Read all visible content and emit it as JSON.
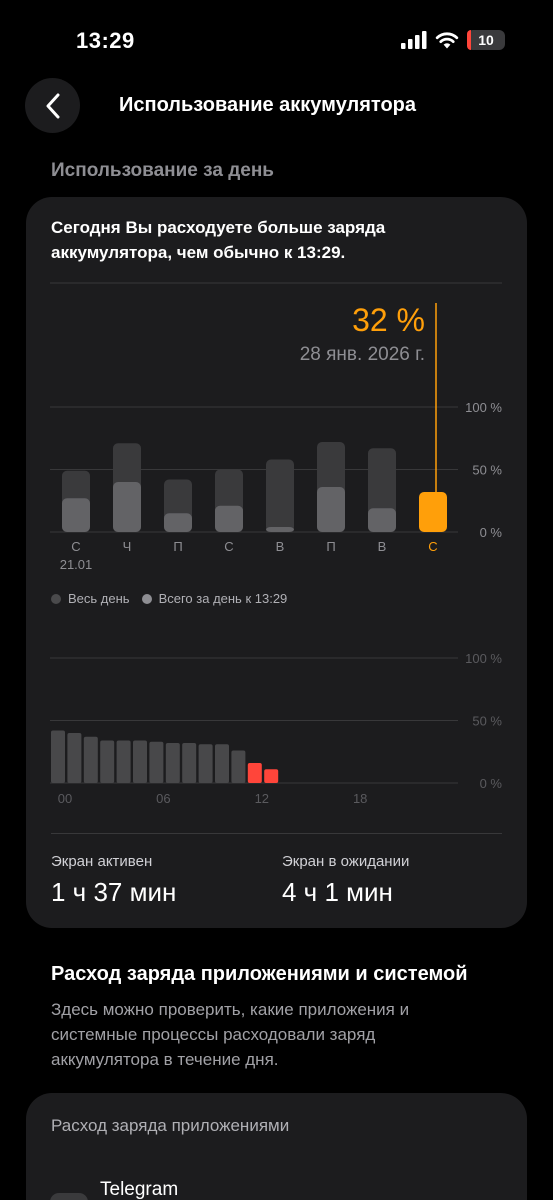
{
  "status": {
    "time": "13:29",
    "battery_level": "10",
    "battery_fraction": 0.1,
    "battery_color": "#ff453a"
  },
  "nav": {
    "back_icon": "chevron-left-icon",
    "title": "Использование аккумулятора"
  },
  "section_title": "Использование за день",
  "summary": {
    "text": "Сегодня Вы расходуете больше заряда аккумулятора, чем обычно к 13:29."
  },
  "tooltip": {
    "value": "32 %",
    "date": "28 янв. 2026 г."
  },
  "legend": {
    "all_day": "Весь день",
    "to_time": "Всего за день к 13:29"
  },
  "chart_data": [
    {
      "type": "bar",
      "categories": [
        "С",
        "Ч",
        "П",
        "С",
        "В",
        "П",
        "В",
        "С"
      ],
      "first_category_date": "21.01",
      "y_ticks": [
        "100 %",
        "50 %",
        "0 %"
      ],
      "ylim": [
        0,
        100
      ],
      "series": [
        {
          "name": "Весь день",
          "values": [
            49,
            71,
            42,
            50,
            58,
            72,
            67,
            32
          ]
        },
        {
          "name": "Всего за день к 13:29",
          "values": [
            27,
            40,
            15,
            21,
            4,
            36,
            19,
            32
          ]
        }
      ],
      "selected_index": 7,
      "colors": {
        "all_day": "#3a3a3c",
        "to_time": "#636366",
        "selected": "#ff9f0a"
      }
    },
    {
      "type": "bar",
      "x_ticks": [
        "00",
        "06",
        "12",
        "18"
      ],
      "y_ticks": [
        "100 %",
        "50 %",
        "0 %"
      ],
      "ylim": [
        0,
        100
      ],
      "hours": [
        0,
        1,
        2,
        3,
        4,
        5,
        6,
        7,
        8,
        9,
        10,
        11,
        12,
        13
      ],
      "values": [
        42,
        40,
        37,
        34,
        34,
        34,
        33,
        32,
        32,
        31,
        31,
        26,
        16,
        11
      ],
      "low_power_from_hour": 12,
      "colors": {
        "normal": "#48484a",
        "low": "#ff453a"
      }
    }
  ],
  "screen": {
    "active_label": "Экран активен",
    "active_value": "1 ч 37 мин",
    "idle_label": "Экран в ожидании",
    "idle_value": "4 ч 1 мин"
  },
  "apps": {
    "heading": "Расход заряда приложениями и системой",
    "description": "Здесь можно проверить, какие приложения и системные процессы расходовали заряд аккумулятора в течение дня.",
    "card_title": "Расход заряда приложениями",
    "first_app": "Telegram"
  }
}
